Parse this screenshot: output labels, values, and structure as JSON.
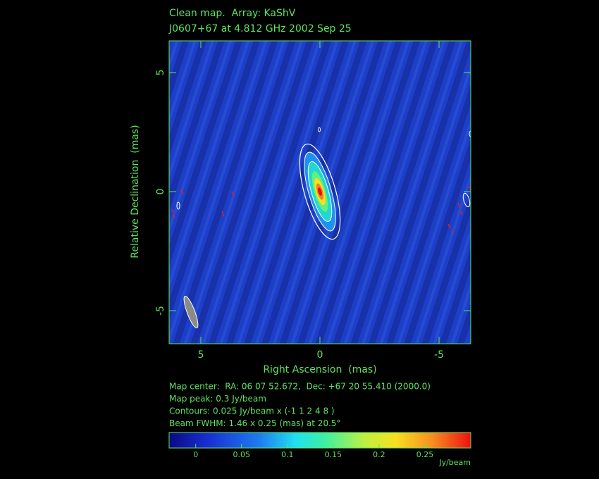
{
  "chart_data": {
    "type": "image",
    "title": "Clean map.  Array: KaShV",
    "subtitle": "J0607+67 at 4.812 GHz 2002 Sep 25",
    "xlabel": "Right Ascension  (mas)",
    "ylabel": "Relative Declination  (mas)",
    "xlim": [
      6.33,
      -6.33
    ],
    "ylim": [
      -6.39,
      6.33
    ],
    "xticks": [
      5,
      0,
      -5
    ],
    "yticks": [
      5,
      0,
      -5
    ],
    "notes": [
      "Map center:  RA: 06 07 52.672,  Dec: +67 20 55.410 (2000.0)",
      "Map peak: 0.3 Jy/beam",
      "Contours: 0.025 Jy/beam x (-1 1 2 4 8 )",
      "Beam FWHM: 1.46 x 0.25 (mas) at 20.5°"
    ],
    "colorbar": {
      "label": "Jy/beam",
      "lim": [
        -0.029,
        0.3
      ],
      "ticks": [
        0,
        0.05,
        0.1,
        0.15,
        0.2,
        0.25
      ]
    }
  }
}
